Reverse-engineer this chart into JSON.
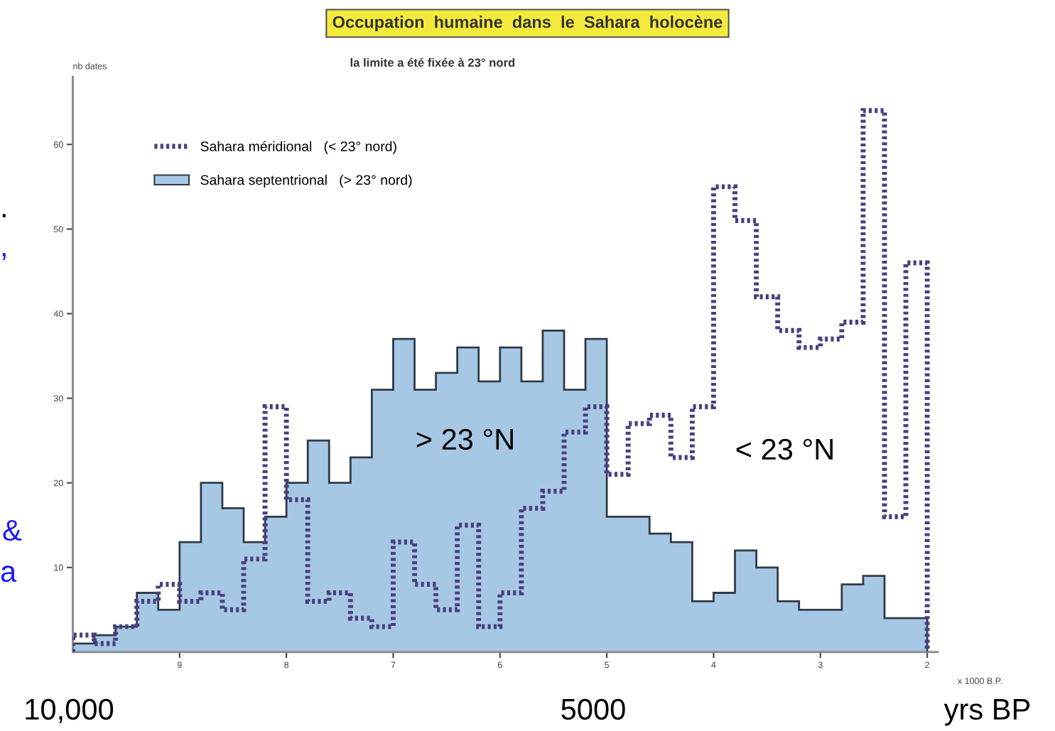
{
  "chart_data": {
    "type": "histogram",
    "title": "Occupation  humaine  dans  le  Sahara  holocène",
    "subtitle": "la limite a été fixée à 23° nord",
    "ylabel": "nb dates",
    "xlabel": "x 1000 B.P.",
    "bins": [
      10.0,
      9.8,
      9.6,
      9.4,
      9.2,
      9.0,
      8.8,
      8.6,
      8.4,
      8.2,
      8.0,
      7.8,
      7.6,
      7.4,
      7.2,
      7.0,
      6.8,
      6.6,
      6.4,
      6.2,
      6.0,
      5.8,
      5.6,
      5.4,
      5.2,
      5.0,
      4.8,
      4.6,
      4.4,
      4.2,
      4.0,
      3.8,
      3.6,
      3.4,
      3.2,
      3.0,
      2.8,
      2.6,
      2.4,
      2.2,
      2.0
    ],
    "series": [
      {
        "name": "Sahara septentrional   (> 23° nord)",
        "color": "#a6c8e4",
        "line_style": "solid",
        "values": [
          1,
          2,
          3,
          7,
          5,
          13,
          20,
          17,
          13,
          16,
          20,
          25,
          20,
          23,
          31,
          37,
          31,
          33,
          36,
          32,
          36,
          32,
          38,
          31,
          37,
          16,
          16,
          14,
          13,
          6,
          7,
          12,
          10,
          6,
          5,
          5,
          8,
          9,
          4,
          4
        ]
      },
      {
        "name": "Sahara méridional   (< 23° nord)",
        "color": "#4a3f80",
        "line_style": "dotted",
        "values": [
          2,
          1,
          3,
          6,
          8,
          6,
          7,
          5,
          11,
          29,
          18,
          6,
          7,
          4,
          3,
          13,
          8,
          5,
          15,
          3,
          7,
          17,
          19,
          26,
          29,
          21,
          27,
          28,
          23,
          29,
          55,
          51,
          42,
          38,
          36,
          37,
          39,
          64,
          16,
          46
        ]
      }
    ],
    "xlim": [
      10,
      1.9
    ],
    "xticks": [
      9,
      8,
      7,
      6,
      5,
      4,
      3,
      2
    ],
    "ylim": [
      0,
      68
    ],
    "yticks": [
      10,
      20,
      30,
      40,
      50,
      60
    ],
    "grid": false,
    "legend": "top left",
    "annotations": [
      "> 23 °N",
      "< 23 °N",
      "10,000",
      "5000",
      "yrs BP",
      ".",
      ",",
      "&",
      "a"
    ]
  }
}
